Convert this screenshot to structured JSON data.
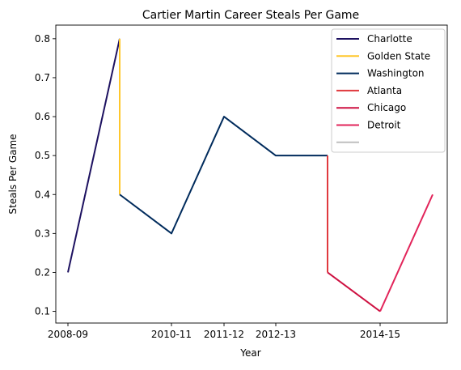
{
  "chart_data": {
    "type": "line",
    "title": "Cartier Martin Career Steals Per Game",
    "xlabel": "Year",
    "ylabel": "Steals Per Game",
    "x_ticks": [
      "2008-09",
      "2010-11",
      "2011-12",
      "2012-13",
      "2014-15"
    ],
    "y_ticks": [
      "0.1",
      "0.2",
      "0.3",
      "0.4",
      "0.5",
      "0.6",
      "0.7",
      "0.8"
    ],
    "ylim": [
      0.07,
      0.835
    ],
    "grid": false,
    "legend_position": "top-right",
    "series": [
      {
        "name": "Charlotte",
        "color": "#1d1160",
        "points": [
          [
            0,
            0.2
          ],
          [
            1,
            0.8
          ]
        ]
      },
      {
        "name": "Golden State",
        "color": "#ffc72c",
        "points": [
          [
            1,
            0.8
          ],
          [
            1,
            0.4
          ]
        ]
      },
      {
        "name": "Washington",
        "color": "#002b5c",
        "points": [
          [
            1,
            0.4
          ],
          [
            2,
            0.3
          ],
          [
            3,
            0.6
          ],
          [
            4,
            0.5
          ],
          [
            5,
            0.5
          ]
        ]
      },
      {
        "name": "Atlanta",
        "color": "#e03a3e",
        "points": [
          [
            5,
            0.5
          ],
          [
            5,
            0.2
          ]
        ]
      },
      {
        "name": "Chicago",
        "color": "#ce1141",
        "points": [
          [
            5,
            0.2
          ],
          [
            6,
            0.1
          ]
        ]
      },
      {
        "name": "Detroit",
        "color": "#e2245a",
        "points": [
          [
            6,
            0.1
          ],
          [
            7,
            0.4
          ]
        ]
      },
      {
        "name": "",
        "color": "#bfbfbf",
        "points": []
      }
    ]
  }
}
